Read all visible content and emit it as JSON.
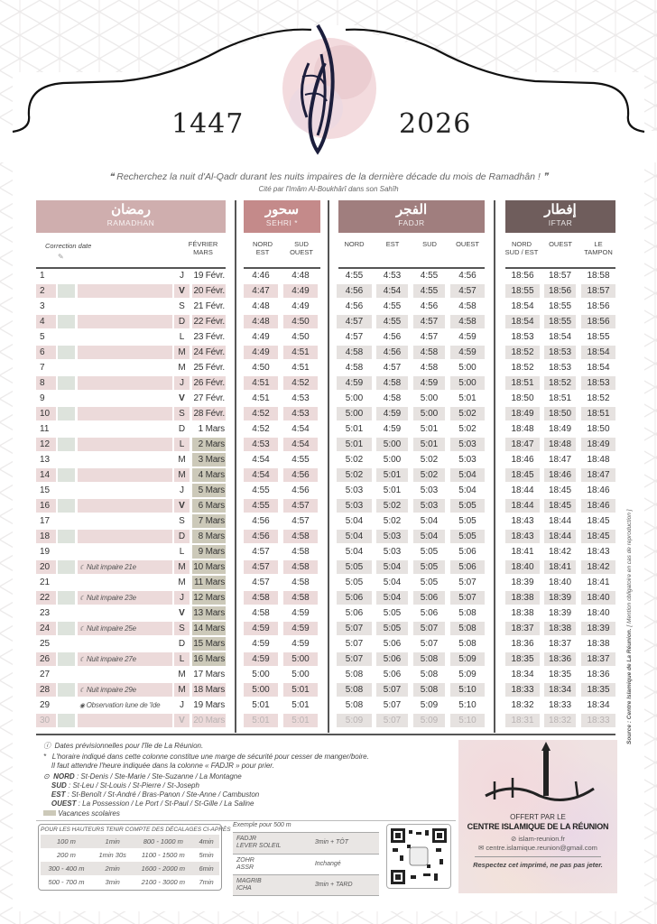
{
  "header": {
    "year_hijri": "1447",
    "year_gregorian": "2026",
    "quote": "Recherchez la nuit d'Al-Qadr durant les nuits impaires de la dernière décade du mois de Ramadhân !",
    "quote_source": "Cité par l'Imâm Al-Boukhârî dans son Sahîh"
  },
  "sections": {
    "ramadhan": {
      "arabic": "رمضان",
      "label": "RAMADHAN",
      "color": "#cfaeae"
    },
    "sehri": {
      "arabic": "سحور",
      "label": "SEHRI *",
      "color": "#c48a8a"
    },
    "fadjr": {
      "arabic": "الفجر",
      "label": "FADJR",
      "color": "#a07e7e"
    },
    "iftar": {
      "arabic": "إفطار",
      "label": "IFTAR",
      "color": "#6f5d5c"
    }
  },
  "columns": {
    "correction": "Correction date",
    "month": "FÉVRIER\nMARS",
    "sehri": [
      "NORD\nEST",
      "SUD\nOUEST"
    ],
    "fadjr": [
      "NORD",
      "EST",
      "SUD",
      "OUEST"
    ],
    "iftar": [
      "NORD\nSUD / EST",
      "OUEST",
      "LE\nTAMPON"
    ]
  },
  "vacances_color": "#ccc9b9",
  "rows": [
    [
      "1",
      "",
      "J",
      "19 Févr.",
      "4:46",
      "4:48",
      "4:55",
      "4:53",
      "4:55",
      "4:56",
      "18:56",
      "18:57",
      "18:58"
    ],
    [
      "2",
      "",
      "V",
      "20 Févr.",
      "4:47",
      "4:49",
      "4:56",
      "4:54",
      "4:55",
      "4:57",
      "18:55",
      "18:56",
      "18:57"
    ],
    [
      "3",
      "",
      "S",
      "21 Févr.",
      "4:48",
      "4:49",
      "4:56",
      "4:55",
      "4:56",
      "4:58",
      "18:54",
      "18:55",
      "18:56"
    ],
    [
      "4",
      "",
      "D",
      "22 Févr.",
      "4:48",
      "4:50",
      "4:57",
      "4:55",
      "4:57",
      "4:58",
      "18:54",
      "18:55",
      "18:56"
    ],
    [
      "5",
      "",
      "L",
      "23 Févr.",
      "4:49",
      "4:50",
      "4:57",
      "4:56",
      "4:57",
      "4:59",
      "18:53",
      "18:54",
      "18:55"
    ],
    [
      "6",
      "",
      "M",
      "24 Févr.",
      "4:49",
      "4:51",
      "4:58",
      "4:56",
      "4:58",
      "4:59",
      "18:52",
      "18:53",
      "18:54"
    ],
    [
      "7",
      "",
      "M",
      "25 Févr.",
      "4:50",
      "4:51",
      "4:58",
      "4:57",
      "4:58",
      "5:00",
      "18:52",
      "18:53",
      "18:54"
    ],
    [
      "8",
      "",
      "J",
      "26 Févr.",
      "4:51",
      "4:52",
      "4:59",
      "4:58",
      "4:59",
      "5:00",
      "18:51",
      "18:52",
      "18:53"
    ],
    [
      "9",
      "",
      "V",
      "27 Févr.",
      "4:51",
      "4:53",
      "5:00",
      "4:58",
      "5:00",
      "5:01",
      "18:50",
      "18:51",
      "18:52"
    ],
    [
      "10",
      "",
      "S",
      "28 Févr.",
      "4:52",
      "4:53",
      "5:00",
      "4:59",
      "5:00",
      "5:02",
      "18:49",
      "18:50",
      "18:51"
    ],
    [
      "11",
      "",
      "D",
      "1 Mars",
      "4:52",
      "4:54",
      "5:01",
      "4:59",
      "5:01",
      "5:02",
      "18:48",
      "18:49",
      "18:50"
    ],
    [
      "12",
      "",
      "L",
      "2 Mars",
      "4:53",
      "4:54",
      "5:01",
      "5:00",
      "5:01",
      "5:03",
      "18:47",
      "18:48",
      "18:49"
    ],
    [
      "13",
      "",
      "M",
      "3 Mars",
      "4:54",
      "4:55",
      "5:02",
      "5:00",
      "5:02",
      "5:03",
      "18:46",
      "18:47",
      "18:48"
    ],
    [
      "14",
      "",
      "M",
      "4 Mars",
      "4:54",
      "4:56",
      "5:02",
      "5:01",
      "5:02",
      "5:04",
      "18:45",
      "18:46",
      "18:47"
    ],
    [
      "15",
      "",
      "J",
      "5 Mars",
      "4:55",
      "4:56",
      "5:03",
      "5:01",
      "5:03",
      "5:04",
      "18:44",
      "18:45",
      "18:46"
    ],
    [
      "16",
      "",
      "V",
      "6 Mars",
      "4:55",
      "4:57",
      "5:03",
      "5:02",
      "5:03",
      "5:05",
      "18:44",
      "18:45",
      "18:46"
    ],
    [
      "17",
      "",
      "S",
      "7 Mars",
      "4:56",
      "4:57",
      "5:04",
      "5:02",
      "5:04",
      "5:05",
      "18:43",
      "18:44",
      "18:45"
    ],
    [
      "18",
      "",
      "D",
      "8 Mars",
      "4:56",
      "4:58",
      "5:04",
      "5:03",
      "5:04",
      "5:05",
      "18:43",
      "18:44",
      "18:45"
    ],
    [
      "19",
      "",
      "L",
      "9 Mars",
      "4:57",
      "4:58",
      "5:04",
      "5:03",
      "5:05",
      "5:06",
      "18:41",
      "18:42",
      "18:43"
    ],
    [
      "20",
      "Nuit impaire 21e",
      "M",
      "10 Mars",
      "4:57",
      "4:58",
      "5:05",
      "5:04",
      "5:05",
      "5:06",
      "18:40",
      "18:41",
      "18:42"
    ],
    [
      "21",
      "",
      "M",
      "11 Mars",
      "4:57",
      "4:58",
      "5:05",
      "5:04",
      "5:05",
      "5:07",
      "18:39",
      "18:40",
      "18:41"
    ],
    [
      "22",
      "Nuit impaire 23e",
      "J",
      "12 Mars",
      "4:58",
      "4:58",
      "5:06",
      "5:04",
      "5:06",
      "5:07",
      "18:38",
      "18:39",
      "18:40"
    ],
    [
      "23",
      "",
      "V",
      "13 Mars",
      "4:58",
      "4:59",
      "5:06",
      "5:05",
      "5:06",
      "5:08",
      "18:38",
      "18:39",
      "18:40"
    ],
    [
      "24",
      "Nuit impaire 25e",
      "S",
      "14 Mars",
      "4:59",
      "4:59",
      "5:07",
      "5:05",
      "5:07",
      "5:08",
      "18:37",
      "18:38",
      "18:39"
    ],
    [
      "25",
      "",
      "D",
      "15 Mars",
      "4:59",
      "4:59",
      "5:07",
      "5:06",
      "5:07",
      "5:08",
      "18:36",
      "18:37",
      "18:38"
    ],
    [
      "26",
      "Nuit impaire 27e",
      "L",
      "16 Mars",
      "4:59",
      "5:00",
      "5:07",
      "5:06",
      "5:08",
      "5:09",
      "18:35",
      "18:36",
      "18:37"
    ],
    [
      "27",
      "",
      "M",
      "17 Mars",
      "5:00",
      "5:00",
      "5:08",
      "5:06",
      "5:08",
      "5:09",
      "18:34",
      "18:35",
      "18:36"
    ],
    [
      "28",
      "Nuit impaire 29e",
      "M",
      "18 Mars",
      "5:00",
      "5:01",
      "5:08",
      "5:07",
      "5:08",
      "5:10",
      "18:33",
      "18:34",
      "18:35"
    ],
    [
      "29",
      "Observation lune de 'Ide",
      "J",
      "19 Mars",
      "5:01",
      "5:01",
      "5:08",
      "5:07",
      "5:09",
      "5:10",
      "18:32",
      "18:33",
      "18:34"
    ],
    [
      "30",
      "",
      "V",
      "20 Mars",
      "5:01",
      "5:01",
      "5:09",
      "5:07",
      "5:09",
      "5:10",
      "18:31",
      "18:32",
      "18:33"
    ]
  ],
  "vacances_rows": [
    "12",
    "13",
    "14",
    "15",
    "16",
    "17",
    "18",
    "19",
    "20",
    "21",
    "22",
    "23",
    "24",
    "25",
    "26"
  ],
  "notes": {
    "dates": "Dates prévisionnelles pour l'île de La Réunion.",
    "sehri_1": "L'horaire indiqué dans cette colonne constitue une marge de sécurité pour cesser de manger/boire.",
    "sehri_2": "Il faut attendre l'heure indiquée dans la colonne « FADJR » pour prier.",
    "nord_k": "NORD",
    "nord_v": " : St-Denis / Ste-Marie / Ste-Suzanne / La Montagne",
    "sud_k": "SUD",
    "sud_v": " : St-Leu / St-Louis / St-Pierre / St-Joseph",
    "est_k": "EST",
    "est_v": " : St-Benoît / St-André / Bras-Panon / Ste-Anne / Cambuston",
    "ouest_k": "OUEST",
    "ouest_v": " : La Possession / Le Port / St-Paul / St-Gille / La Saline",
    "vacances": "Vacances scolaires"
  },
  "heights": {
    "title": "POUR LES HAUTEURS TENIR COMPTE DES DÉCALAGES CI-APRÈS",
    "rows": [
      [
        "100 m",
        "1min",
        "800 - 1000 m",
        "4min"
      ],
      [
        "200 m",
        "1min 30s",
        "1100 - 1500 m",
        "5min"
      ],
      [
        "300 - 400 m",
        "2min",
        "1600 - 2000 m",
        "6min"
      ],
      [
        "500 - 700 m",
        "3min",
        "2100 - 3000 m",
        "7min"
      ]
    ]
  },
  "example": {
    "title": "Exemple pour 500 m",
    "rows": [
      [
        "FADJR\nLEVER SOLEIL",
        "3min + TÔT"
      ],
      [
        "ZOHR\nASSR",
        "Inchangé"
      ],
      [
        "MAGRIB\nICHA",
        "3min + TARD"
      ]
    ]
  },
  "centre": {
    "offert": "OFFERT PAR LE",
    "name": "CENTRE ISLAMIQUE DE LA RÉUNION",
    "site": "islam-reunion.fr",
    "email": "centre.islamique.reunion@gmail.com",
    "respect": "Respectez cet imprimé, ne pas pas jeter.",
    "logo_text": "المركز الإسلامي"
  },
  "source": {
    "bold": "Source : Centre Islamique de La Réunion.",
    "rest": " [ Mention obligatoire en cas de reproduction ]"
  }
}
